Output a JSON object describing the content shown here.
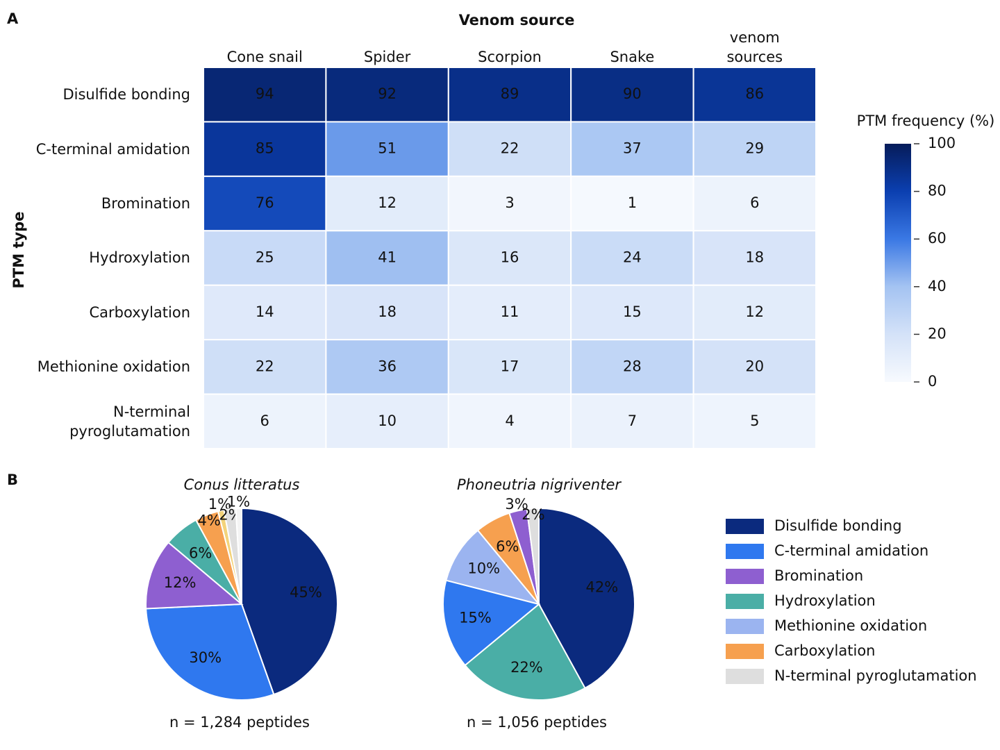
{
  "chart_data": [
    {
      "type": "heatmap",
      "panel": "A",
      "title": "Venom source",
      "ylabel": "PTM type",
      "x": [
        "Cone snail",
        "Spider",
        "Scorpion",
        "Snake",
        "Other venom sources"
      ],
      "y": [
        "Disulfide bonding",
        "C-terminal amidation",
        "Bromination",
        "Hydroxylation",
        "Carboxylation",
        "Methionine oxidation",
        "N-terminal pyroglutamation"
      ],
      "values": [
        [
          94,
          92,
          89,
          90,
          86
        ],
        [
          85,
          51,
          22,
          37,
          29
        ],
        [
          76,
          12,
          3,
          1,
          6
        ],
        [
          25,
          41,
          16,
          24,
          18
        ],
        [
          14,
          18,
          11,
          15,
          12
        ],
        [
          22,
          36,
          17,
          28,
          20
        ],
        [
          6,
          10,
          4,
          7,
          5
        ]
      ],
      "colorbar_label": "PTM frequency (%)",
      "clim": [
        0,
        100
      ],
      "cticks": [
        0,
        20,
        40,
        60,
        80,
        100
      ],
      "colormap": [
        "#f7fafe",
        "#d4e2f8",
        "#a4c3f2",
        "#3a78e4",
        "#0b3fb0",
        "#061c5a"
      ]
    },
    {
      "type": "pie",
      "panel": "B",
      "title": "Conus litteratus",
      "caption": "n = 1,284 peptides",
      "values": [
        45,
        30,
        12,
        6,
        4,
        1,
        2,
        1
      ],
      "value_labels": [
        "45%",
        "30%",
        "12%",
        "6%",
        "4%",
        "1%",
        "2%",
        "1%"
      ],
      "colors": [
        "#0b2a7e",
        "#2f78ef",
        "#8e5fd0",
        "#4aaea6",
        "#f6a04f",
        "#f3d37a",
        "#dedede",
        "#f4f4f4"
      ]
    },
    {
      "type": "pie",
      "title": "Phoneutria nigriventer",
      "caption": "n = 1,056 peptides",
      "values": [
        42,
        22,
        15,
        10,
        6,
        3,
        2
      ],
      "value_labels": [
        "42%",
        "22%",
        "15%",
        "10%",
        "6%",
        "3%",
        "2%"
      ],
      "colors": [
        "#0b2a7e",
        "#4aaea6",
        "#2f78ef",
        "#9bb4f0",
        "#f6a04f",
        "#8e5fd0",
        "#dedede"
      ]
    },
    {
      "type": "legend",
      "labels": [
        "Disulfide bonding",
        "C-terminal amidation",
        "Bromination",
        "Hydroxylation",
        "Methionine oxidation",
        "Carboxylation",
        "N-terminal pyroglutamation"
      ],
      "colors": [
        "#0b2a7e",
        "#2f78ef",
        "#8e5fd0",
        "#4aaea6",
        "#9bb4f0",
        "#f6a04f",
        "#dedede"
      ]
    }
  ]
}
